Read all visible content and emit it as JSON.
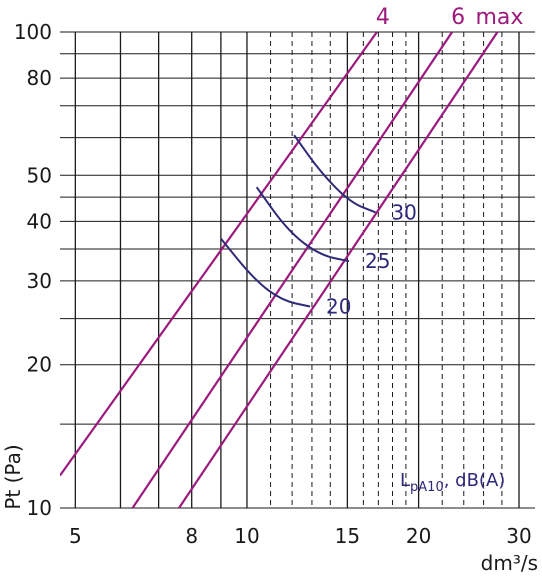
{
  "chart_data": {
    "type": "line",
    "title": "",
    "xlabel": "dm³/s",
    "ylabel": "Pt (Pa)",
    "xscale": "log",
    "yscale": "log",
    "xlim": [
      4.7,
      32
    ],
    "ylim": [
      10,
      100
    ],
    "x_ticks": [
      5,
      8,
      10,
      15,
      20,
      30
    ],
    "y_ticks": [
      10,
      20,
      30,
      40,
      50,
      80,
      100
    ],
    "x_grid": [
      5,
      6,
      7,
      8,
      9,
      10,
      11,
      12,
      13,
      14,
      15,
      16,
      17,
      18,
      19,
      20,
      22,
      24,
      26,
      28,
      30
    ],
    "y_grid": [
      10,
      15,
      20,
      25,
      30,
      35,
      40,
      45,
      50,
      60,
      70,
      80,
      90,
      100
    ],
    "colors": {
      "setting_lines": "#9c1a7d",
      "noise_curves": "#2e2a7a",
      "grid": "#1a1a1a"
    },
    "series": [
      {
        "name": "4",
        "points": [
          [
            4.7,
            11.7
          ],
          [
            16.9,
            100
          ]
        ]
      },
      {
        "name": "6",
        "points": [
          [
            6.3,
            10
          ],
          [
            22.9,
            100
          ]
        ]
      },
      {
        "name": "max",
        "points": [
          [
            7.6,
            10
          ],
          [
            27.5,
            100
          ]
        ]
      }
    ],
    "noise_curves": [
      {
        "label": "30",
        "points": [
          [
            12.1,
            60.7
          ],
          [
            13.5,
            50.5
          ],
          [
            15.2,
            43.8
          ],
          [
            16.8,
            41.8
          ]
        ]
      },
      {
        "label": "25",
        "points": [
          [
            10.4,
            47.2
          ],
          [
            11.8,
            38.2
          ],
          [
            13.4,
            34
          ],
          [
            15.1,
            33
          ]
        ]
      },
      {
        "label": "20",
        "points": [
          [
            9.0,
            36.8
          ],
          [
            10.3,
            30.2
          ],
          [
            11.5,
            27.3
          ],
          [
            12.9,
            26.5
          ]
        ]
      }
    ],
    "legend": "L_pA10, dB(A)",
    "legend_main": "L",
    "legend_sub": "pA10",
    "legend_rest": ", dB(A)"
  }
}
